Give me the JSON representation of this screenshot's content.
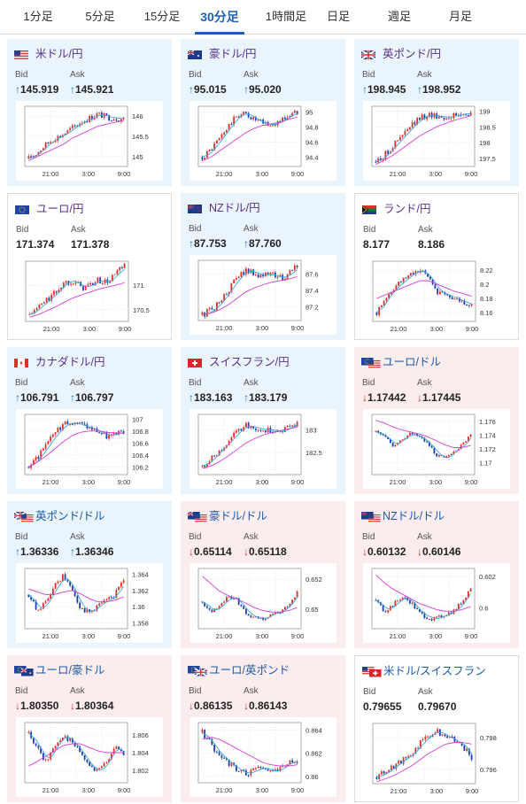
{
  "tabs": [
    {
      "label": "1分足",
      "active": false
    },
    {
      "label": "5分足",
      "active": false
    },
    {
      "label": "15分足",
      "active": false
    },
    {
      "label": "30分足",
      "active": true
    },
    {
      "label": "1時間足",
      "active": false
    },
    {
      "label": "日足",
      "active": false
    },
    {
      "label": "週足",
      "active": false
    },
    {
      "label": "月足",
      "active": false
    }
  ],
  "bid_label": "Bid",
  "ask_label": "Ask",
  "x_ticks": [
    "21:00",
    "3:00",
    "9:00"
  ],
  "colors": {
    "up_bg": "#e9f4fc",
    "down_bg": "#fbecee",
    "up_arrow": "#1a78c2",
    "down_arrow": "#d2342d",
    "candle_up": "#e0302b",
    "candle_down": "#1f3fa8",
    "ma_short": "#3aa8d8",
    "ma_long": "#d33fd3"
  },
  "pairs": [
    {
      "name": "米ドル/円",
      "flag": "us",
      "direction": "up",
      "bid": "145.919",
      "ask": "145.921",
      "yticks": [
        "146",
        "145.5",
        "145"
      ],
      "ylim": [
        144.8,
        146.2
      ],
      "trend": [
        144.95,
        145.1,
        145.3,
        145.45,
        145.55,
        145.7,
        145.85,
        145.95,
        146.05,
        145.98,
        145.95,
        145.93
      ],
      "ma": [
        144.9,
        145.0,
        145.1,
        145.2,
        145.3,
        145.45,
        145.55,
        145.65,
        145.75,
        145.8,
        145.85,
        145.88
      ]
    },
    {
      "name": "豪ドル/円",
      "flag": "au",
      "direction": "up",
      "bid": "95.015",
      "ask": "95.020",
      "yticks": [
        "95",
        "94.8",
        "94.6",
        "94.4"
      ],
      "ylim": [
        94.3,
        95.05
      ],
      "trend": [
        94.4,
        94.5,
        94.65,
        94.8,
        94.95,
        94.98,
        94.9,
        94.85,
        94.82,
        94.88,
        94.95,
        95.0
      ],
      "ma": [
        94.35,
        94.4,
        94.48,
        94.56,
        94.64,
        94.72,
        94.78,
        94.82,
        94.84,
        94.86,
        94.9,
        94.93
      ]
    },
    {
      "name": "英ポンド/円",
      "flag": "gb",
      "direction": "up",
      "bid": "198.945",
      "ask": "198.952",
      "yticks": [
        "199",
        "198.5",
        "198",
        "197.5"
      ],
      "ylim": [
        197.3,
        199.1
      ],
      "trend": [
        197.4,
        197.6,
        197.9,
        198.2,
        198.5,
        198.75,
        198.9,
        198.85,
        198.8,
        198.85,
        198.9,
        198.95
      ],
      "ma": [
        197.3,
        197.45,
        197.6,
        197.8,
        198.0,
        198.2,
        198.35,
        198.5,
        198.6,
        198.7,
        198.78,
        198.85
      ]
    },
    {
      "name": "ユーロ/円",
      "flag": "eu",
      "direction": "flat",
      "bid": "171.374",
      "ask": "171.378",
      "yticks": [
        "171",
        "170.5"
      ],
      "ylim": [
        170.3,
        171.45
      ],
      "trend": [
        170.4,
        170.55,
        170.7,
        170.85,
        171.05,
        171.1,
        170.95,
        171.0,
        171.1,
        171.05,
        171.25,
        171.37
      ],
      "ma": [
        170.35,
        170.4,
        170.48,
        170.56,
        170.65,
        170.74,
        170.8,
        170.86,
        170.92,
        170.96,
        171.0,
        171.05
      ]
    },
    {
      "name": "NZドル/円",
      "flag": "nz",
      "direction": "up",
      "bid": "87.753",
      "ask": "87.760",
      "yticks": [
        "87.6",
        "87.4",
        "87.2"
      ],
      "ylim": [
        87.05,
        87.75
      ],
      "trend": [
        87.1,
        87.15,
        87.25,
        87.4,
        87.55,
        87.65,
        87.62,
        87.58,
        87.6,
        87.55,
        87.6,
        87.7
      ],
      "ma": [
        87.1,
        87.12,
        87.16,
        87.22,
        87.3,
        87.38,
        87.43,
        87.47,
        87.5,
        87.52,
        87.54,
        87.57
      ]
    },
    {
      "name": "ランド/円",
      "flag": "za",
      "direction": "flat",
      "bid": "8.177",
      "ask": "8.186",
      "yticks": [
        "8.22",
        "8.2",
        "8.18",
        "8.16"
      ],
      "ylim": [
        8.15,
        8.23
      ],
      "trend": [
        8.16,
        8.18,
        8.195,
        8.205,
        8.215,
        8.22,
        8.21,
        8.19,
        8.185,
        8.18,
        8.175,
        8.17
      ],
      "ma": [
        8.18,
        8.185,
        8.19,
        8.195,
        8.2,
        8.205,
        8.205,
        8.2,
        8.195,
        8.19,
        8.187,
        8.183
      ]
    },
    {
      "name": "カナダドル/円",
      "flag": "ca",
      "direction": "up",
      "bid": "106.791",
      "ask": "106.797",
      "yticks": [
        "107",
        "106.8",
        "106.6",
        "106.4",
        "106.2"
      ],
      "ylim": [
        106.1,
        107.05
      ],
      "trend": [
        106.2,
        106.35,
        106.55,
        106.75,
        106.9,
        106.95,
        106.9,
        106.85,
        106.8,
        106.72,
        106.75,
        106.79
      ],
      "ma": [
        106.2,
        106.28,
        106.38,
        106.5,
        106.62,
        106.72,
        106.78,
        106.8,
        106.8,
        106.78,
        106.77,
        106.77
      ]
    },
    {
      "name": "スイスフラン/円",
      "flag": "ch",
      "direction": "up",
      "bid": "183.163",
      "ask": "183.179",
      "yticks": [
        "183",
        "182.5"
      ],
      "ylim": [
        182.05,
        183.3
      ],
      "trend": [
        182.2,
        182.35,
        182.55,
        182.75,
        182.95,
        183.1,
        183.05,
        183.0,
        183.0,
        182.95,
        183.05,
        183.16
      ],
      "ma": [
        182.15,
        182.2,
        182.3,
        182.42,
        182.56,
        182.7,
        182.8,
        182.88,
        182.94,
        182.98,
        183.02,
        183.06
      ]
    },
    {
      "name": "ユーロ/ドル",
      "flag": "eu-us",
      "direction": "down",
      "bid": "1.17442",
      "ask": "1.17445",
      "yticks": [
        "1.176",
        "1.174",
        "1.172",
        "1.17"
      ],
      "ylim": [
        1.1685,
        1.1768
      ],
      "trend": [
        1.1745,
        1.1738,
        1.1725,
        1.1735,
        1.1742,
        1.1738,
        1.1728,
        1.1712,
        1.1705,
        1.1718,
        1.1725,
        1.1744
      ],
      "ma": [
        1.1762,
        1.1758,
        1.1752,
        1.1748,
        1.1745,
        1.1742,
        1.1738,
        1.1732,
        1.1726,
        1.1722,
        1.1722,
        1.1725
      ]
    },
    {
      "name": "英ポンド/ドル",
      "flag": "gb-us",
      "direction": "up",
      "bid": "1.36336",
      "ask": "1.36346",
      "yticks": [
        "1.364",
        "1.362",
        "1.36",
        "1.358"
      ],
      "ylim": [
        1.3575,
        1.3645
      ],
      "trend": [
        1.3615,
        1.3595,
        1.3605,
        1.3625,
        1.3638,
        1.3622,
        1.3598,
        1.3592,
        1.3602,
        1.3608,
        1.3615,
        1.3633
      ],
      "ma": [
        1.3622,
        1.3618,
        1.3615,
        1.3615,
        1.3618,
        1.362,
        1.3616,
        1.361,
        1.3606,
        1.3606,
        1.3608,
        1.3612
      ]
    },
    {
      "name": "豪ドル/ドル",
      "flag": "au-us",
      "direction": "down",
      "bid": "0.65114",
      "ask": "0.65118",
      "yticks": [
        "0.652",
        "0.65"
      ],
      "ylim": [
        0.6488,
        0.6526
      ],
      "trend": [
        0.6505,
        0.6498,
        0.6502,
        0.6508,
        0.6506,
        0.6498,
        0.6494,
        0.6493,
        0.6497,
        0.6498,
        0.6503,
        0.6511
      ],
      "ma": [
        0.6522,
        0.6517,
        0.6512,
        0.6509,
        0.6507,
        0.6504,
        0.6501,
        0.6499,
        0.6498,
        0.6498,
        0.6499,
        0.6501
      ]
    },
    {
      "name": "NZドル/ドル",
      "flag": "nz-us",
      "direction": "down",
      "bid": "0.60132",
      "ask": "0.60146",
      "yticks": [
        "0.602",
        "0.6"
      ],
      "ylim": [
        0.5988,
        0.6024
      ],
      "trend": [
        0.6005,
        0.5998,
        0.6002,
        0.6007,
        0.6004,
        0.5997,
        0.5994,
        0.5993,
        0.5996,
        0.5998,
        0.6004,
        0.6013
      ],
      "ma": [
        0.6021,
        0.6016,
        0.6012,
        0.6009,
        0.6006,
        0.6003,
        0.6001,
        0.5999,
        0.5998,
        0.5998,
        0.5999,
        0.6001
      ]
    },
    {
      "name": "ユーロ/豪ドル",
      "flag": "eu-au",
      "direction": "down",
      "bid": "1.80350",
      "ask": "1.80364",
      "yticks": [
        "1.806",
        "1.804",
        "1.802"
      ],
      "ylim": [
        1.8008,
        1.8072
      ],
      "trend": [
        1.8062,
        1.8045,
        1.803,
        1.8048,
        1.806,
        1.8052,
        1.804,
        1.8025,
        1.8018,
        1.803,
        1.8048,
        1.8036
      ],
      "ma": [
        1.8025,
        1.803,
        1.8036,
        1.8042,
        1.8048,
        1.805,
        1.805,
        1.8046,
        1.8042,
        1.804,
        1.804,
        1.804
      ]
    },
    {
      "name": "ユーロ/英ポンド",
      "flag": "eu-gb",
      "direction": "down",
      "bid": "0.86135",
      "ask": "0.86143",
      "yticks": [
        "0.864",
        "0.862",
        "0.86"
      ],
      "ylim": [
        0.8596,
        0.8645
      ],
      "trend": [
        0.8638,
        0.8628,
        0.8618,
        0.8612,
        0.8606,
        0.8602,
        0.8605,
        0.8608,
        0.8604,
        0.8606,
        0.8612,
        0.8614
      ],
      "ma": [
        0.8632,
        0.8634,
        0.8632,
        0.8628,
        0.8624,
        0.862,
        0.8616,
        0.8612,
        0.861,
        0.8609,
        0.8609,
        0.861
      ]
    },
    {
      "name": "米ドル/スイスフラン",
      "flag": "us-ch",
      "direction": "flat",
      "bid": "0.79655",
      "ask": "0.79670",
      "yticks": [
        "0.798",
        "0.796"
      ],
      "ylim": [
        0.7952,
        0.7988
      ],
      "trend": [
        0.7955,
        0.7958,
        0.7962,
        0.7966,
        0.797,
        0.7976,
        0.7982,
        0.7984,
        0.7981,
        0.7978,
        0.7975,
        0.7966
      ],
      "ma": [
        0.7952,
        0.7954,
        0.7956,
        0.7959,
        0.7962,
        0.7966,
        0.797,
        0.7973,
        0.7976,
        0.7977,
        0.7977,
        0.7976
      ]
    }
  ]
}
